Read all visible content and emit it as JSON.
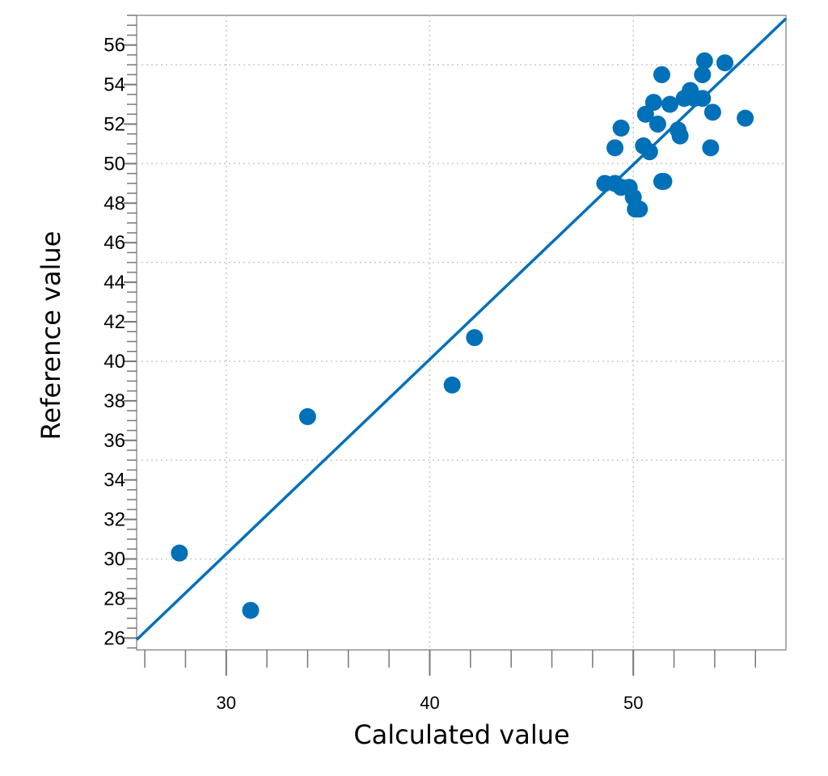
{
  "chart_data": {
    "type": "scatter",
    "xlabel": "Calculated value",
    "ylabel": "Reference value",
    "xlim": [
      25.6,
      57.5
    ],
    "ylim": [
      25.4,
      57.5
    ],
    "x_ticks": [
      30,
      40,
      50
    ],
    "y_ticks": [
      26,
      28,
      30,
      32,
      34,
      36,
      38,
      40,
      42,
      44,
      46,
      48,
      50,
      52,
      54,
      56
    ],
    "grid": true,
    "fit_line": {
      "slope": 0.985,
      "intercept": 0.7
    },
    "colors": {
      "points": "#0070b8",
      "line": "#0070b8",
      "grid": "#c8c8c8",
      "axis": "#777777"
    },
    "points": [
      {
        "x": 27.7,
        "y": 30.3
      },
      {
        "x": 31.2,
        "y": 27.4
      },
      {
        "x": 34.0,
        "y": 37.2
      },
      {
        "x": 41.1,
        "y": 38.8
      },
      {
        "x": 42.2,
        "y": 41.2
      },
      {
        "x": 48.6,
        "y": 49.0
      },
      {
        "x": 49.1,
        "y": 49.0
      },
      {
        "x": 49.4,
        "y": 48.8
      },
      {
        "x": 49.8,
        "y": 48.8
      },
      {
        "x": 50.0,
        "y": 48.3
      },
      {
        "x": 50.1,
        "y": 47.7
      },
      {
        "x": 50.3,
        "y": 47.7
      },
      {
        "x": 49.1,
        "y": 50.8
      },
      {
        "x": 49.4,
        "y": 51.8
      },
      {
        "x": 50.5,
        "y": 50.9
      },
      {
        "x": 50.8,
        "y": 50.6
      },
      {
        "x": 51.4,
        "y": 49.1
      },
      {
        "x": 51.5,
        "y": 49.1
      },
      {
        "x": 50.6,
        "y": 52.5
      },
      {
        "x": 51.0,
        "y": 53.1
      },
      {
        "x": 51.2,
        "y": 52.0
      },
      {
        "x": 51.4,
        "y": 54.5
      },
      {
        "x": 51.8,
        "y": 53.0
      },
      {
        "x": 52.2,
        "y": 51.7
      },
      {
        "x": 52.3,
        "y": 51.4
      },
      {
        "x": 52.5,
        "y": 53.3
      },
      {
        "x": 52.8,
        "y": 53.7
      },
      {
        "x": 53.0,
        "y": 53.3
      },
      {
        "x": 53.4,
        "y": 53.3
      },
      {
        "x": 53.4,
        "y": 54.5
      },
      {
        "x": 53.5,
        "y": 55.2
      },
      {
        "x": 53.8,
        "y": 50.8
      },
      {
        "x": 53.9,
        "y": 52.6
      },
      {
        "x": 54.5,
        "y": 55.1
      },
      {
        "x": 55.5,
        "y": 52.3
      }
    ]
  }
}
